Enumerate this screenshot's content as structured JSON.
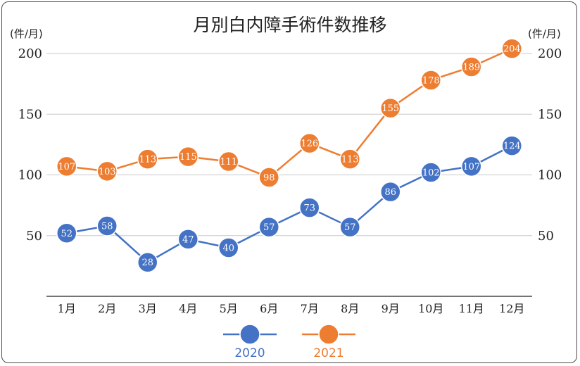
{
  "chart_data": {
    "type": "line",
    "title": "月別白内障手術件数推移",
    "y_unit_left": "(件/月)",
    "y_unit_right": "(件/月)",
    "categories": [
      "1月",
      "2月",
      "3月",
      "4月",
      "5月",
      "6月",
      "7月",
      "8月",
      "9月",
      "10月",
      "11月",
      "12月"
    ],
    "ylim": [
      0,
      220
    ],
    "yticks": [
      50,
      100,
      150,
      200
    ],
    "grid": true,
    "legend_position": "bottom",
    "series": [
      {
        "name": "2020",
        "color": "#4472c4",
        "values": [
          52,
          58,
          28,
          47,
          40,
          57,
          73,
          57,
          86,
          102,
          107,
          124
        ]
      },
      {
        "name": "2021",
        "color": "#ed7d31",
        "values": [
          107,
          103,
          113,
          115,
          111,
          98,
          126,
          113,
          155,
          178,
          189,
          204
        ]
      }
    ]
  }
}
